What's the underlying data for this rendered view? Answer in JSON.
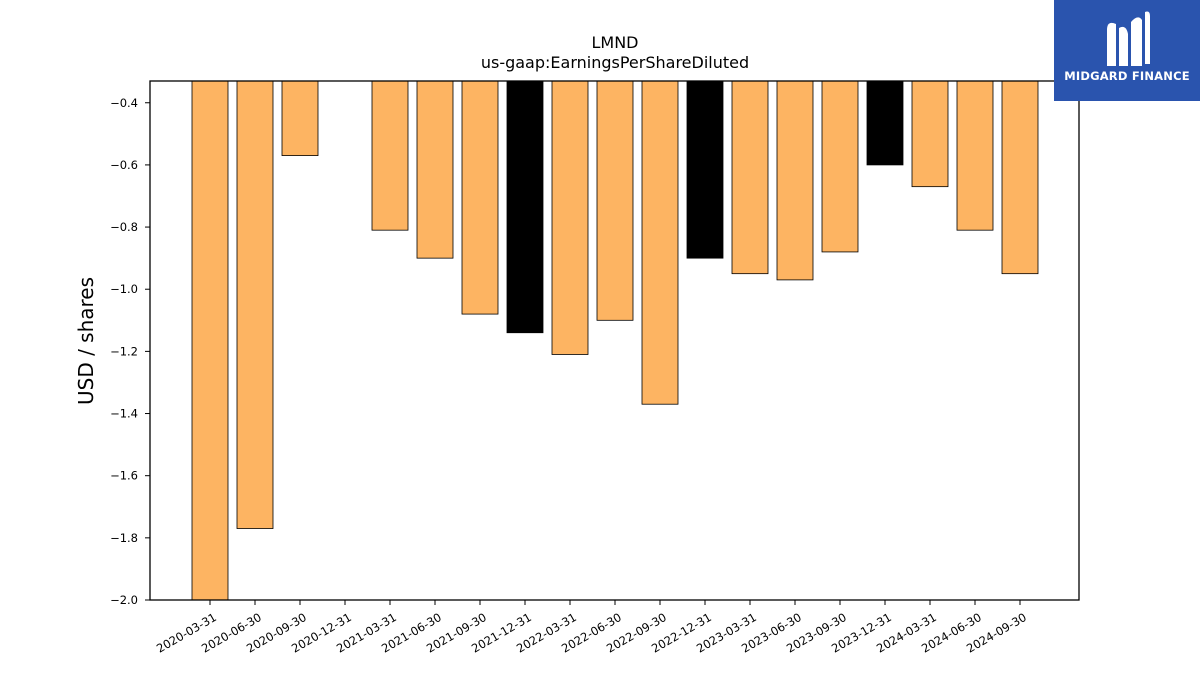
{
  "chart_data": {
    "type": "bar",
    "title": "LMND",
    "subtitle": "us-gaap:EarningsPerShareDiluted",
    "ylabel": "USD / shares",
    "xlabel": "",
    "ylim": [
      -2.0,
      -0.33
    ],
    "yticks": [
      -0.4,
      -0.6,
      -0.8,
      -1.0,
      -1.2,
      -1.4,
      -1.6,
      -1.8,
      -2.0
    ],
    "ytick_labels": [
      "−0.4",
      "−0.6",
      "−0.8",
      "−1.0",
      "−1.2",
      "−1.4",
      "−1.6",
      "−1.8",
      "−2.0"
    ],
    "grid": false,
    "categories": [
      "2020-03-31",
      "2020-06-30",
      "2020-09-30",
      "2020-12-31",
      "2021-03-31",
      "2021-06-30",
      "2021-09-30",
      "2021-12-31",
      "2022-03-31",
      "2022-06-30",
      "2022-09-30",
      "2022-12-31",
      "2023-03-31",
      "2023-06-30",
      "2023-09-30",
      "2023-12-31",
      "2024-03-31",
      "2024-06-30",
      "2024-09-30"
    ],
    "values": [
      -2.0,
      -1.77,
      -0.57,
      null,
      -0.81,
      -0.9,
      -1.08,
      -1.14,
      -1.21,
      -1.1,
      -1.37,
      -0.9,
      -0.95,
      -0.97,
      -0.88,
      -0.6,
      -0.67,
      -0.81,
      -0.95
    ],
    "bar_colors": [
      "#fdb462",
      "#fdb462",
      "#fdb462",
      "#fdb462",
      "#fdb462",
      "#fdb462",
      "#fdb462",
      "#000000",
      "#fdb462",
      "#fdb462",
      "#fdb462",
      "#000000",
      "#fdb462",
      "#fdb462",
      "#fdb462",
      "#000000",
      "#fdb462",
      "#fdb462",
      "#fdb462"
    ]
  },
  "logo": {
    "text": "MIDGARD FINANCE",
    "background": "#2a54ae"
  }
}
